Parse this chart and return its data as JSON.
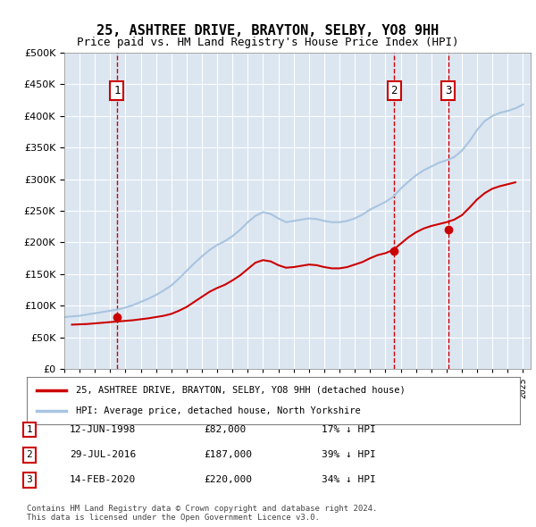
{
  "title": "25, ASHTREE DRIVE, BRAYTON, SELBY, YO8 9HH",
  "subtitle": "Price paid vs. HM Land Registry's House Price Index (HPI)",
  "background_color": "#dce6f1",
  "plot_bg_color": "#dce6f1",
  "hpi_color": "#a8c4e0",
  "price_color": "#cc0000",
  "vline_color": "#cc0000",
  "ylim": [
    0,
    500000
  ],
  "yticks": [
    0,
    50000,
    100000,
    150000,
    200000,
    250000,
    300000,
    350000,
    400000,
    450000,
    500000
  ],
  "xlim_start": 1995.0,
  "xlim_end": 2025.5,
  "xticks": [
    1995,
    1996,
    1997,
    1998,
    1999,
    2000,
    2001,
    2002,
    2003,
    2004,
    2005,
    2006,
    2007,
    2008,
    2009,
    2010,
    2011,
    2012,
    2013,
    2014,
    2015,
    2016,
    2017,
    2018,
    2019,
    2020,
    2021,
    2022,
    2023,
    2024,
    2025
  ],
  "sale_dates": [
    1998.44,
    2016.57,
    2020.12
  ],
  "sale_prices": [
    82000,
    187000,
    220000
  ],
  "sale_labels": [
    "1",
    "2",
    "3"
  ],
  "sale_date_strs": [
    "12-JUN-1998",
    "29-JUL-2016",
    "14-FEB-2020"
  ],
  "sale_price_strs": [
    "£82,000",
    "£187,000",
    "£220,000"
  ],
  "sale_hpi_strs": [
    "17% ↓ HPI",
    "39% ↓ HPI",
    "34% ↓ HPI"
  ],
  "legend_line1": "25, ASHTREE DRIVE, BRAYTON, SELBY, YO8 9HH (detached house)",
  "legend_line2": "HPI: Average price, detached house, North Yorkshire",
  "footer": "Contains HM Land Registry data © Crown copyright and database right 2024.\nThis data is licensed under the Open Government Licence v3.0.",
  "hpi_x": [
    1995.0,
    1995.5,
    1996.0,
    1996.5,
    1997.0,
    1997.5,
    1998.0,
    1998.5,
    1999.0,
    1999.5,
    2000.0,
    2000.5,
    2001.0,
    2001.5,
    2002.0,
    2002.5,
    2003.0,
    2003.5,
    2004.0,
    2004.5,
    2005.0,
    2005.5,
    2006.0,
    2006.5,
    2007.0,
    2007.5,
    2008.0,
    2008.5,
    2009.0,
    2009.5,
    2010.0,
    2010.5,
    2011.0,
    2011.5,
    2012.0,
    2012.5,
    2013.0,
    2013.5,
    2014.0,
    2014.5,
    2015.0,
    2015.5,
    2016.0,
    2016.5,
    2017.0,
    2017.5,
    2018.0,
    2018.5,
    2019.0,
    2019.5,
    2020.0,
    2020.5,
    2021.0,
    2021.5,
    2022.0,
    2022.5,
    2023.0,
    2023.5,
    2024.0,
    2024.5,
    2025.0
  ],
  "hpi_y": [
    82000,
    83000,
    84000,
    86000,
    88000,
    90000,
    92000,
    94000,
    97000,
    101000,
    106000,
    111000,
    117000,
    124000,
    132000,
    143000,
    155000,
    167000,
    178000,
    188000,
    196000,
    202000,
    210000,
    220000,
    232000,
    242000,
    248000,
    245000,
    238000,
    232000,
    234000,
    236000,
    238000,
    237000,
    234000,
    232000,
    232000,
    234000,
    238000,
    244000,
    252000,
    258000,
    264000,
    272000,
    285000,
    296000,
    306000,
    314000,
    320000,
    326000,
    330000,
    335000,
    345000,
    360000,
    378000,
    392000,
    400000,
    405000,
    408000,
    412000,
    418000
  ],
  "price_x": [
    1995.5,
    1996.0,
    1996.5,
    1997.0,
    1997.5,
    1998.0,
    1998.5,
    1999.0,
    1999.5,
    2000.0,
    2000.5,
    2001.0,
    2001.5,
    2002.0,
    2002.5,
    2003.0,
    2003.5,
    2004.0,
    2004.5,
    2005.0,
    2005.5,
    2006.0,
    2006.5,
    2007.0,
    2007.5,
    2008.0,
    2008.5,
    2009.0,
    2009.5,
    2010.0,
    2010.5,
    2011.0,
    2011.5,
    2012.0,
    2012.5,
    2013.0,
    2013.5,
    2014.0,
    2014.5,
    2015.0,
    2015.5,
    2016.0,
    2016.5,
    2017.0,
    2017.5,
    2018.0,
    2018.5,
    2019.0,
    2019.5,
    2020.0,
    2020.5,
    2021.0,
    2021.5,
    2022.0,
    2022.5,
    2023.0,
    2023.5,
    2024.0,
    2024.5
  ],
  "price_y": [
    70000,
    70500,
    71000,
    72000,
    73000,
    74000,
    75000,
    76000,
    77000,
    78500,
    80000,
    82000,
    84000,
    87000,
    92000,
    98000,
    106000,
    114000,
    122000,
    128000,
    133000,
    140000,
    148000,
    158000,
    168000,
    172000,
    170000,
    164000,
    160000,
    161000,
    163000,
    165000,
    164000,
    161000,
    159000,
    159000,
    161000,
    165000,
    169000,
    175000,
    180000,
    183000,
    188000,
    198000,
    208000,
    216000,
    222000,
    226000,
    229000,
    232000,
    236000,
    243000,
    255000,
    268000,
    278000,
    285000,
    289000,
    292000,
    295000
  ]
}
